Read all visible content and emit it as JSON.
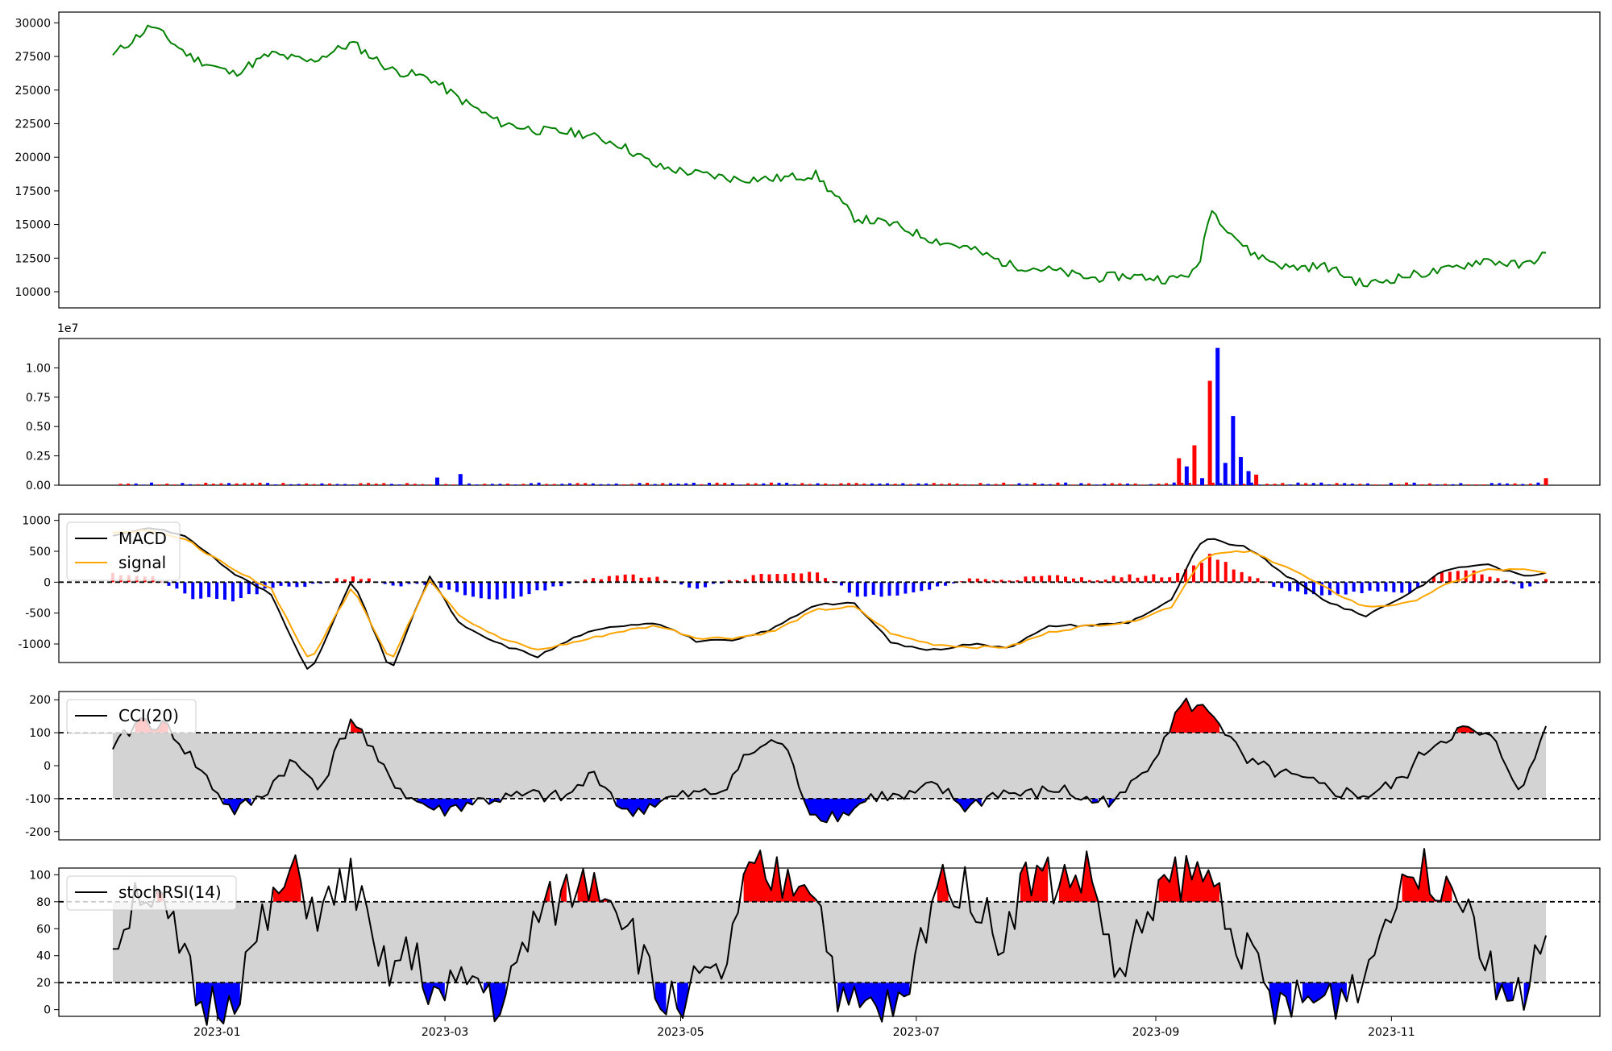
{
  "colors": {
    "price": "#008000",
    "up": "#ff0000",
    "down": "#0000ff",
    "macd": "#000000",
    "signal": "#ffa500",
    "band_fill": "#d3d3d3",
    "axis": "#000000"
  },
  "x_axis": {
    "start": "2022-12-05",
    "end": "2023-12-11",
    "ticks": [
      "2023-01",
      "2023-03",
      "2023-05",
      "2023-07",
      "2023-09",
      "2023-11"
    ]
  },
  "chart_data": [
    {
      "id": "price",
      "type": "line",
      "ylim": [
        8800,
        30800
      ],
      "yticks": [
        "10000",
        "12500",
        "15000",
        "17500",
        "20000",
        "22500",
        "25000",
        "27500",
        "30000"
      ],
      "ytick_values": [
        10000,
        12500,
        15000,
        17500,
        20000,
        22500,
        25000,
        27500,
        30000
      ],
      "x_dates": [
        "2022-12-05",
        "2022-12-15",
        "2022-12-25",
        "2023-01-05",
        "2023-01-15",
        "2023-01-25",
        "2023-02-05",
        "2023-02-15",
        "2023-02-25",
        "2023-03-05",
        "2023-03-15",
        "2023-03-25",
        "2023-04-05",
        "2023-04-15",
        "2023-04-25",
        "2023-05-05",
        "2023-05-15",
        "2023-05-25",
        "2023-06-05",
        "2023-06-15",
        "2023-06-25",
        "2023-07-05",
        "2023-07-15",
        "2023-07-25",
        "2023-08-05",
        "2023-08-15",
        "2023-08-25",
        "2023-09-05",
        "2023-09-12",
        "2023-09-15",
        "2023-09-25",
        "2023-10-05",
        "2023-10-15",
        "2023-10-25",
        "2023-11-05",
        "2023-11-15",
        "2023-11-25",
        "2023-12-05",
        "2023-12-11"
      ],
      "values": [
        27600,
        29800,
        27500,
        26200,
        27700,
        27100,
        28500,
        26500,
        25900,
        24300,
        22600,
        22000,
        21800,
        21000,
        19300,
        18800,
        18400,
        18400,
        18700,
        15500,
        15000,
        13900,
        13200,
        12000,
        11600,
        11000,
        11200,
        10900,
        11600,
        16200,
        13000,
        11800,
        11900,
        10500,
        11200,
        11600,
        12400,
        11900,
        12900
      ]
    },
    {
      "id": "volume",
      "type": "bar",
      "offset_label": "1e7",
      "ylim": [
        0,
        12500000
      ],
      "yticks": [
        "0.00",
        "0.25",
        "0.50",
        "0.75",
        "1.00"
      ],
      "ytick_values": [
        0,
        2500000,
        5000000,
        7500000,
        10000000
      ],
      "baseline": 150000,
      "spikes": [
        {
          "date": "2023-02-27",
          "value": 650000,
          "dir": "down"
        },
        {
          "date": "2023-03-05",
          "value": 950000,
          "dir": "down"
        },
        {
          "date": "2023-09-07",
          "value": 2300000,
          "dir": "up"
        },
        {
          "date": "2023-09-09",
          "value": 1600000,
          "dir": "down"
        },
        {
          "date": "2023-09-11",
          "value": 3400000,
          "dir": "up"
        },
        {
          "date": "2023-09-13",
          "value": 600000,
          "dir": "down"
        },
        {
          "date": "2023-09-15",
          "value": 8900000,
          "dir": "up"
        },
        {
          "date": "2023-09-17",
          "value": 11700000,
          "dir": "down"
        },
        {
          "date": "2023-09-19",
          "value": 1900000,
          "dir": "down"
        },
        {
          "date": "2023-09-21",
          "value": 5900000,
          "dir": "down"
        },
        {
          "date": "2023-09-23",
          "value": 2400000,
          "dir": "down"
        },
        {
          "date": "2023-09-25",
          "value": 1200000,
          "dir": "down"
        },
        {
          "date": "2023-09-27",
          "value": 900000,
          "dir": "up"
        },
        {
          "date": "2023-12-11",
          "value": 600000,
          "dir": "up"
        }
      ]
    },
    {
      "id": "macd",
      "type": "line",
      "ylim": [
        -1300,
        1100
      ],
      "yticks": [
        "-1000",
        "-500",
        "0",
        "500",
        "1000"
      ],
      "ytick_values": [
        -1000,
        -500,
        0,
        500,
        1000
      ],
      "legend": [
        "MACD",
        "signal"
      ],
      "legend_position": "upper-left",
      "zero_line": true,
      "x_dates": [
        "2022-12-05",
        "2022-12-15",
        "2022-12-25",
        "2023-01-05",
        "2023-01-15",
        "2023-01-25",
        "2023-02-05",
        "2023-02-15",
        "2023-02-25",
        "2023-03-05",
        "2023-03-15",
        "2023-03-25",
        "2023-04-05",
        "2023-04-15",
        "2023-04-25",
        "2023-05-05",
        "2023-05-15",
        "2023-05-25",
        "2023-06-05",
        "2023-06-15",
        "2023-06-25",
        "2023-07-05",
        "2023-07-15",
        "2023-07-25",
        "2023-08-05",
        "2023-08-15",
        "2023-08-25",
        "2023-09-05",
        "2023-09-12",
        "2023-09-15",
        "2023-09-25",
        "2023-10-05",
        "2023-10-15",
        "2023-10-25",
        "2023-11-05",
        "2023-11-15",
        "2023-11-25",
        "2023-12-05",
        "2023-12-11"
      ],
      "series": [
        {
          "name": "MACD",
          "values": [
            750,
            900,
            700,
            150,
            -200,
            -1500,
            50,
            -1450,
            100,
            -700,
            -1000,
            -1200,
            -850,
            -700,
            -650,
            -950,
            -950,
            -750,
            -350,
            -350,
            -1000,
            -1100,
            -1000,
            -1050,
            -700,
            -700,
            -650,
            -300,
            600,
            700,
            550,
            100,
            -300,
            -550,
            -200,
            200,
            300,
            100,
            150
          ]
        },
        {
          "name": "signal",
          "values": [
            800,
            850,
            650,
            200,
            -100,
            -1300,
            -50,
            -1300,
            50,
            -550,
            -900,
            -1100,
            -950,
            -800,
            -700,
            -900,
            -900,
            -800,
            -450,
            -400,
            -850,
            -1000,
            -1050,
            -1050,
            -800,
            -700,
            -650,
            -400,
            300,
            450,
            500,
            250,
            -100,
            -400,
            -350,
            -50,
            200,
            200,
            150
          ]
        }
      ],
      "histogram": [
        150,
        100,
        -250,
        -300,
        -100,
        -50,
        100,
        -50,
        -50,
        -200,
        -300,
        -150,
        50,
        100,
        100,
        -100,
        50,
        150,
        150,
        -200,
        -250,
        -100,
        50,
        50,
        100,
        50,
        100,
        100,
        300,
        450,
        100,
        -150,
        -200,
        -150,
        -200,
        200,
        150,
        -100,
        50
      ]
    },
    {
      "id": "cci",
      "type": "line",
      "ylim": [
        -225,
        225
      ],
      "yticks": [
        "-200",
        "-100",
        "0",
        "100",
        "200"
      ],
      "ytick_values": [
        -200,
        -100,
        0,
        100,
        200
      ],
      "legend": [
        "CCI(20)"
      ],
      "legend_position": "upper-left",
      "thresholds": [
        100,
        -100
      ],
      "x_dates": [
        "2022-12-05",
        "2022-12-12",
        "2022-12-20",
        "2022-12-28",
        "2023-01-05",
        "2023-01-12",
        "2023-01-20",
        "2023-01-28",
        "2023-02-05",
        "2023-02-12",
        "2023-02-20",
        "2023-02-28",
        "2023-03-08",
        "2023-03-16",
        "2023-03-24",
        "2023-04-01",
        "2023-04-09",
        "2023-04-17",
        "2023-04-25",
        "2023-05-03",
        "2023-05-11",
        "2023-05-19",
        "2023-05-27",
        "2023-06-04",
        "2023-06-12",
        "2023-06-20",
        "2023-06-28",
        "2023-07-06",
        "2023-07-14",
        "2023-07-22",
        "2023-07-30",
        "2023-08-07",
        "2023-08-15",
        "2023-08-23",
        "2023-08-31",
        "2023-09-08",
        "2023-09-16",
        "2023-09-24",
        "2023-10-02",
        "2023-10-10",
        "2023-10-18",
        "2023-10-26",
        "2023-11-03",
        "2023-11-11",
        "2023-11-19",
        "2023-11-27",
        "2023-12-05",
        "2023-12-11"
      ],
      "values": [
        50,
        140,
        110,
        -20,
        -140,
        -100,
        10,
        -60,
        150,
        0,
        -100,
        -140,
        -110,
        -100,
        -90,
        -100,
        -20,
        -150,
        -110,
        -90,
        -80,
        40,
        80,
        -150,
        -150,
        -90,
        -100,
        -60,
        -130,
        -80,
        -90,
        -70,
        -110,
        -100,
        20,
        190,
        160,
        10,
        -20,
        -50,
        -80,
        -90,
        -50,
        60,
        110,
        80,
        -80,
        120
      ]
    },
    {
      "id": "stochrsi",
      "type": "line",
      "ylim": [
        -5,
        105
      ],
      "yticks": [
        "0",
        "20",
        "40",
        "60",
        "80",
        "100"
      ],
      "ytick_values": [
        0,
        20,
        40,
        60,
        80,
        100
      ],
      "legend": [
        "stochRSI(14)"
      ],
      "legend_position": "upper-left",
      "thresholds": [
        80,
        20
      ],
      "x_dates": [
        "2022-12-05",
        "2022-12-12",
        "2022-12-20",
        "2022-12-28",
        "2023-01-05",
        "2023-01-12",
        "2023-01-20",
        "2023-01-28",
        "2023-02-05",
        "2023-02-12",
        "2023-02-20",
        "2023-02-28",
        "2023-03-08",
        "2023-03-16",
        "2023-03-24",
        "2023-04-01",
        "2023-04-09",
        "2023-04-17",
        "2023-04-25",
        "2023-05-03",
        "2023-05-11",
        "2023-05-19",
        "2023-05-27",
        "2023-06-04",
        "2023-06-12",
        "2023-06-20",
        "2023-06-28",
        "2023-07-06",
        "2023-07-14",
        "2023-07-22",
        "2023-07-30",
        "2023-08-07",
        "2023-08-15",
        "2023-08-23",
        "2023-08-31",
        "2023-09-08",
        "2023-09-16",
        "2023-09-24",
        "2023-10-02",
        "2023-10-10",
        "2023-10-18",
        "2023-10-26",
        "2023-11-03",
        "2023-11-11",
        "2023-11-19",
        "2023-11-27",
        "2023-12-05",
        "2023-12-11"
      ],
      "values": [
        45,
        95,
        60,
        0,
        10,
        55,
        100,
        70,
        100,
        25,
        40,
        5,
        25,
        0,
        65,
        85,
        100,
        70,
        5,
        15,
        20,
        100,
        95,
        100,
        0,
        0,
        0,
        95,
        95,
        50,
        100,
        95,
        100,
        15,
        85,
        100,
        95,
        45,
        0,
        5,
        10,
        30,
        100,
        100,
        95,
        30,
        5,
        55
      ]
    }
  ]
}
